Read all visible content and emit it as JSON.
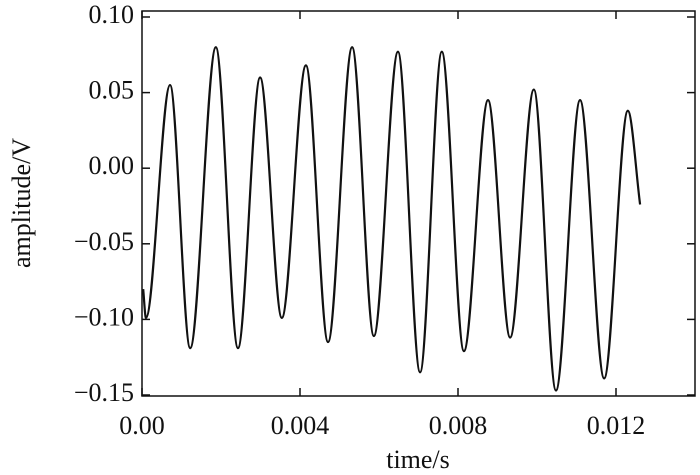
{
  "chart_data": {
    "type": "line",
    "x_label": "time/s",
    "y_label": "amplitude/V",
    "x": [
      3e-05,
      0.0001,
      0.00071,
      0.00122,
      0.00187,
      0.00243,
      0.00299,
      0.00354,
      0.00415,
      0.00471,
      0.00532,
      0.00587,
      0.00648,
      0.00704,
      0.00759,
      0.00815,
      0.00876,
      0.00932,
      0.00992,
      0.01048,
      0.01109,
      0.0117,
      0.0123,
      0.01261
    ],
    "series": [
      {
        "color": "#111111",
        "values": [
          -0.08,
          -0.099,
          0.055,
          -0.119,
          0.08,
          -0.119,
          0.06,
          -0.099,
          0.068,
          -0.115,
          0.08,
          -0.111,
          0.077,
          -0.135,
          0.077,
          -0.121,
          0.045,
          -0.112,
          0.052,
          -0.147,
          0.045,
          -0.139,
          0.038,
          -0.024
        ]
      }
    ],
    "xlim": [
      0,
      0.014
    ],
    "xticks": [
      {
        "value": 0,
        "label": "0.00"
      },
      0.004,
      0.008,
      0.012
    ],
    "ylim": [
      -0.15,
      0.1
    ],
    "yticks": [
      {
        "value": -0.15,
        "label": "−0.15"
      },
      {
        "value": -0.1,
        "label": "−0.10"
      },
      {
        "value": -0.05,
        "label": "−0.05"
      },
      {
        "value": 0,
        "label": "0.00"
      },
      0.05,
      {
        "value": 0.1,
        "label": "0.10"
      }
    ],
    "grid": false
  }
}
